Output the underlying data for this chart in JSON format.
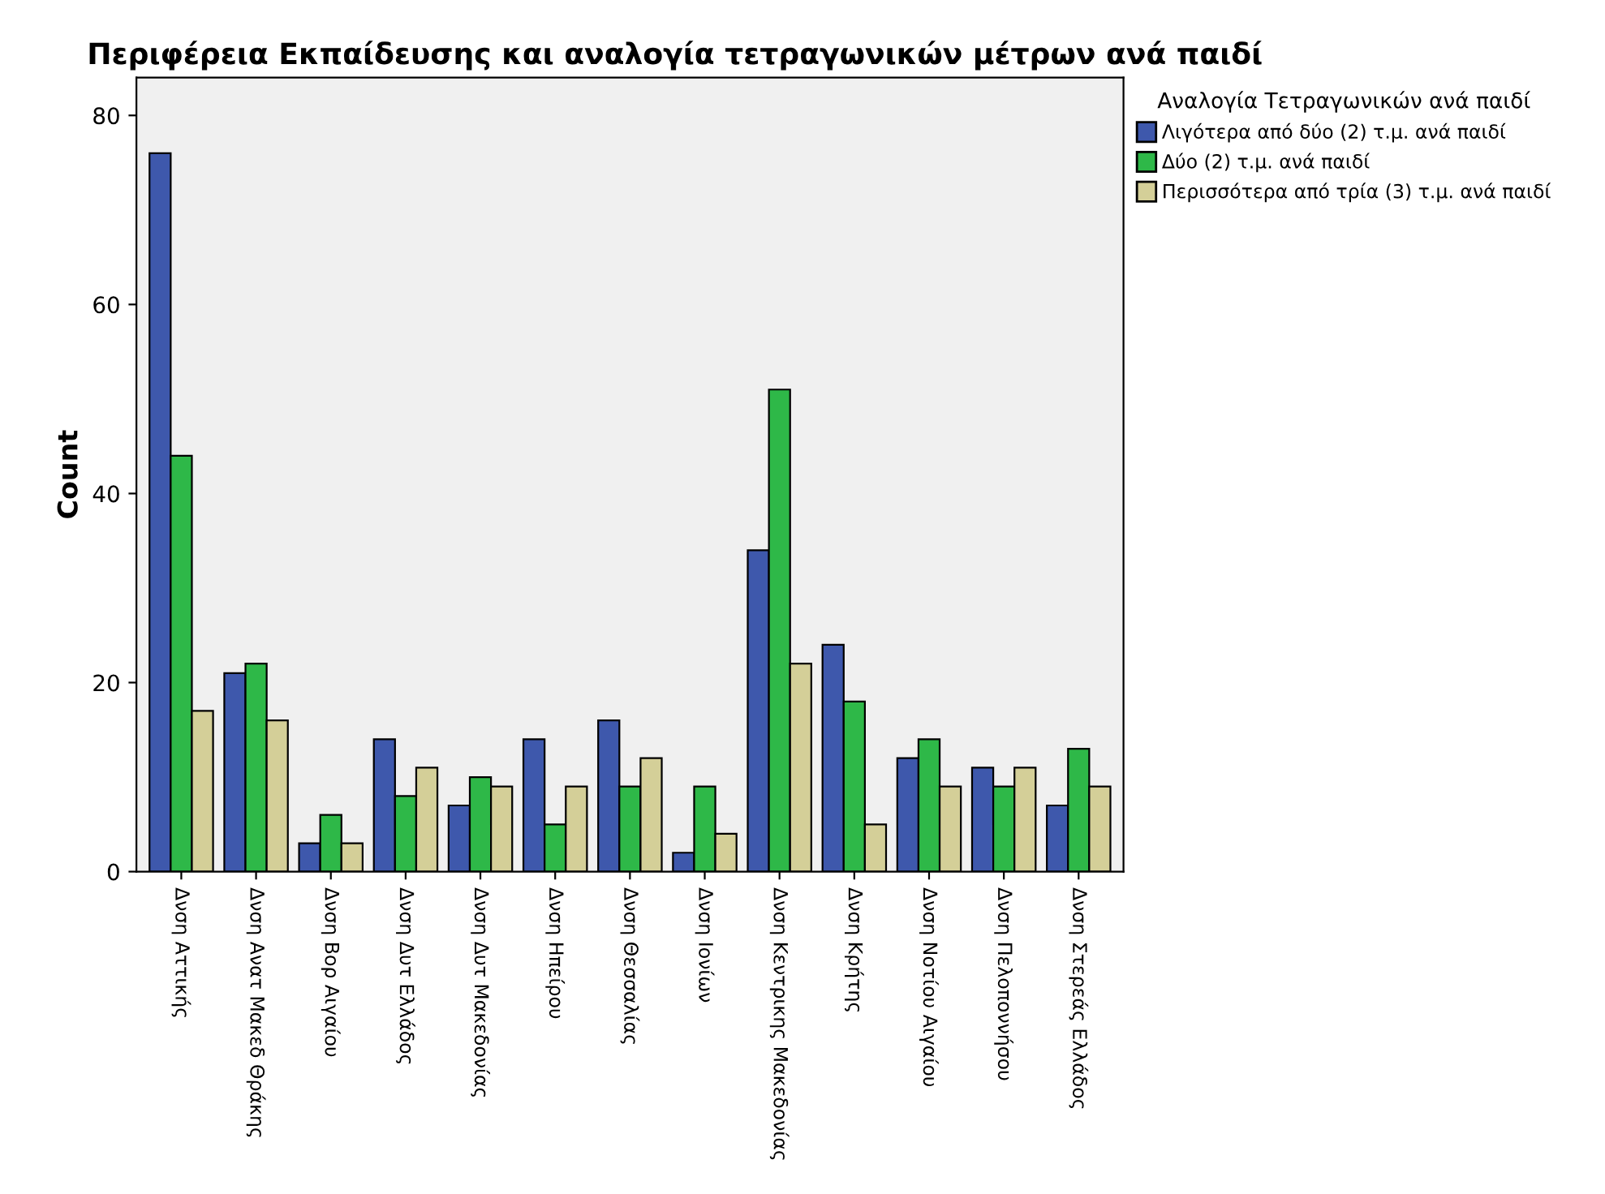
{
  "chart_data": {
    "type": "bar",
    "title": "Περιφέρεια Εκπαίδευσης και αναλογία τετραγωνικών μέτρων ανά παιδί",
    "ylabel": "Count",
    "legend_title": "Αναλογία Τετραγωνικών ανά παιδί",
    "categories": [
      "Δνση Αττικής",
      "Δνση Ανατ Μακεδ Θράκης",
      "Δνση Βορ Αιγαίου",
      "Δνση Δυτ Ελλάδος",
      "Δνση Δυτ Μακεδονίας",
      "Δνση Ηπείρου",
      "Δνση Θεσσαλίας",
      "Δνση Ιονίων",
      "Δνση Κεντρικης Μακεδονίας",
      "Δνση Κρήτης",
      "Δνση Νοτίου Αιγαίου",
      "Δνση Πελοποννήσου",
      "Δνση Στερεάς Ελλάδος"
    ],
    "series": [
      {
        "name": "Λιγότερα από δύο (2) τ.μ. ανά παιδί",
        "color": "#3e58ac",
        "values": [
          76,
          21,
          3,
          14,
          7,
          14,
          16,
          2,
          34,
          24,
          12,
          11,
          7
        ]
      },
      {
        "name": "Δύο (2) τ.μ. ανά παιδί",
        "color": "#2eb848",
        "values": [
          44,
          22,
          6,
          8,
          10,
          5,
          9,
          9,
          51,
          18,
          14,
          9,
          13
        ]
      },
      {
        "name": "Περισσότερα από τρία (3) τ.μ. ανά παιδί",
        "color": "#d4cf98",
        "values": [
          17,
          16,
          3,
          11,
          9,
          9,
          12,
          4,
          22,
          5,
          9,
          11,
          9
        ]
      }
    ],
    "ylim": [
      0,
      84
    ],
    "yticks": [
      0,
      20,
      40,
      60,
      80
    ],
    "grid": false,
    "legend": "top right"
  }
}
